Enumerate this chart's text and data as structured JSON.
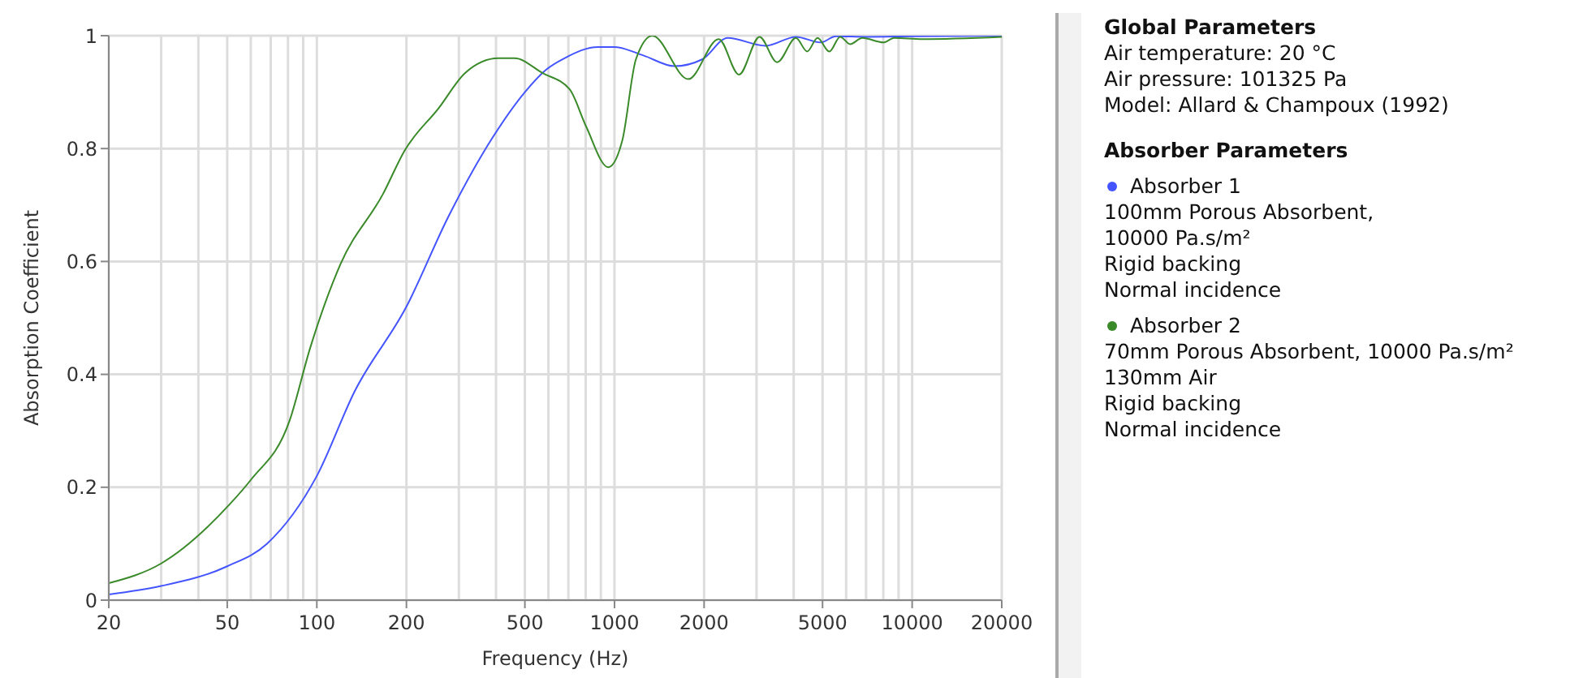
{
  "chart_data": {
    "type": "line",
    "xlabel": "Frequency (Hz)",
    "ylabel": "Absorption Coefficient",
    "log": "x",
    "xlim": [
      20,
      20000
    ],
    "ylim": [
      0,
      1
    ],
    "xticks": [
      20,
      {
        "value": 30,
        "label": null
      },
      {
        "value": 40,
        "label": null
      },
      50,
      {
        "value": 60,
        "label": null
      },
      {
        "value": 70,
        "label": null
      },
      {
        "value": 80,
        "label": null
      },
      {
        "value": 90,
        "label": null
      },
      100,
      200,
      {
        "value": 300,
        "label": null
      },
      {
        "value": 400,
        "label": null
      },
      500,
      {
        "value": 600,
        "label": null
      },
      {
        "value": 700,
        "label": null
      },
      {
        "value": 800,
        "label": null
      },
      {
        "value": 900,
        "label": null
      },
      1000,
      2000,
      {
        "value": 3000,
        "label": null
      },
      {
        "value": 4000,
        "label": null
      },
      5000,
      {
        "value": 6000,
        "label": null
      },
      {
        "value": 7000,
        "label": null
      },
      {
        "value": 8000,
        "label": null
      },
      {
        "value": 9000,
        "label": null
      },
      10000,
      20000
    ],
    "yticks": [
      0,
      {
        "value": 0.2,
        "label": "0.2"
      },
      {
        "value": 0.4,
        "label": "0.4"
      },
      {
        "value": 0.6,
        "label": "0.6"
      },
      {
        "value": 0.8,
        "label": "0.8"
      },
      1
    ],
    "grid": true,
    "legend": "right",
    "marker": "none",
    "line_style": "solid",
    "series": [
      {
        "name": "Absorber 1",
        "color": "#4455ff",
        "x": [
          20,
          30,
          50,
          68,
          100,
          134,
          200,
          277,
          390,
          500,
          590,
          679,
          880,
          1000,
          1250,
          1590,
          1970,
          2400,
          3220,
          4070,
          4930,
          5540,
          7000,
          10000,
          20000
        ],
        "values": [
          0.01,
          0.025,
          0.06,
          0.1,
          0.22,
          0.37,
          0.52,
          0.68,
          0.82,
          0.9,
          0.94,
          0.96,
          0.98,
          0.98,
          0.965,
          0.946,
          0.958,
          0.996,
          0.982,
          0.998,
          0.988,
          0.999,
          0.998,
          0.999,
          1
        ]
      },
      {
        "name": "Absorber 2",
        "color": "#3a8a2a",
        "x": [
          20,
          30,
          51,
          60,
          81,
          95,
          120,
          167,
          197,
          257,
          315,
          407,
          462,
          572,
          707,
          803,
          953,
          1063,
          1180,
          1340,
          1770,
          2240,
          2620,
          3070,
          3520,
          4070,
          4440,
          4810,
          5270,
          5730,
          6190,
          6800,
          8000,
          8700,
          10800,
          20000
        ],
        "values": [
          0.03,
          0.065,
          0.17,
          0.213,
          0.318,
          0.447,
          0.595,
          0.72,
          0.796,
          0.872,
          0.934,
          0.96,
          0.96,
          0.934,
          0.905,
          0.839,
          0.767,
          0.815,
          0.958,
          1,
          0.923,
          0.994,
          0.931,
          0.998,
          0.953,
          0.996,
          0.972,
          0.996,
          0.972,
          0.998,
          0.985,
          0.996,
          0.988,
          0.996,
          0.994,
          0.998
        ]
      }
    ],
    "annotations": [
      "Global Parameters",
      "Air temperature: 20 °C",
      "Air pressure: 101325 Pa",
      "Model: Allard & Champoux (1992)",
      "Absorber Parameters",
      "100mm Porous Absorbent,",
      "10000 Pa.s/m²",
      "Rigid backing",
      "Normal incidence",
      "70mm Porous Absorbent, 10000 Pa.s/m²",
      "130mm Air",
      "Rigid backing",
      "Normal incidence"
    ]
  }
}
